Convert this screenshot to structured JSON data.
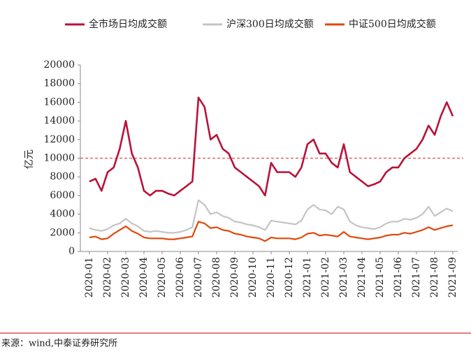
{
  "chart_data": {
    "type": "line",
    "y_label": "亿元",
    "source": "来源：wind,中泰证券研究所",
    "categories": [
      "2020-01",
      null,
      null,
      "2020-02",
      null,
      null,
      "2020-03",
      null,
      null,
      "2020-04",
      null,
      null,
      "2020-05",
      null,
      null,
      "2020-06",
      null,
      null,
      "2020-07",
      null,
      null,
      "2020-08",
      null,
      null,
      "2020-09",
      null,
      null,
      "2020-10",
      null,
      null,
      "2020-11",
      null,
      null,
      "2020-12",
      null,
      null,
      "2021-01",
      null,
      null,
      "2021-02",
      null,
      null,
      "2021-03",
      null,
      null,
      "2021-04",
      null,
      null,
      "2021-05",
      null,
      null,
      "2021-06",
      null,
      null,
      "2021-07",
      null,
      null,
      "2021-08",
      null,
      null,
      "2021-09"
    ],
    "series": [
      {
        "name": "全市场日均成交额",
        "color": "#b8123a",
        "values": [
          7500,
          7800,
          6500,
          8500,
          9000,
          11000,
          14000,
          10500,
          9000,
          6500,
          6000,
          6500,
          6500,
          6200,
          6000,
          6500,
          7000,
          7500,
          16500,
          15500,
          12000,
          12500,
          11000,
          10500,
          9000,
          8500,
          8000,
          7500,
          7000,
          6000,
          9500,
          8500,
          8500,
          8500,
          8000,
          9000,
          11500,
          12000,
          10500,
          10500,
          9500,
          9000,
          11500,
          8500,
          8000,
          7500,
          7000,
          7200,
          7500,
          8500,
          9000,
          9000,
          10000,
          10500,
          11000,
          12000,
          13500,
          12500,
          14500,
          16000,
          14500
        ]
      },
      {
        "name": "沪深300日均成交额",
        "color": "#c4c4c4",
        "values": [
          2500,
          2300,
          2200,
          2400,
          2800,
          3000,
          3500,
          3000,
          2700,
          2200,
          2100,
          2200,
          2100,
          2000,
          2000,
          2100,
          2300,
          2600,
          5500,
          5000,
          4000,
          4200,
          3800,
          3600,
          3200,
          3100,
          2900,
          2800,
          2600,
          2300,
          3300,
          3200,
          3100,
          3000,
          2900,
          3300,
          4500,
          5000,
          4500,
          4400,
          4000,
          4800,
          4500,
          3200,
          2800,
          2600,
          2500,
          2400,
          2600,
          3000,
          3200,
          3200,
          3500,
          3400,
          3600,
          4000,
          4800,
          3800,
          4200,
          4600,
          4300
        ]
      },
      {
        "name": "中证500日均成交额",
        "color": "#e0480c",
        "values": [
          1500,
          1600,
          1300,
          1400,
          1900,
          2300,
          2700,
          2200,
          1900,
          1500,
          1400,
          1400,
          1400,
          1300,
          1300,
          1400,
          1500,
          1600,
          3200,
          3000,
          2500,
          2600,
          2300,
          2200,
          1900,
          1800,
          1600,
          1500,
          1400,
          1100,
          1500,
          1400,
          1400,
          1400,
          1300,
          1500,
          1900,
          2000,
          1700,
          1800,
          1700,
          1600,
          2100,
          1600,
          1500,
          1400,
          1300,
          1400,
          1500,
          1700,
          1800,
          1800,
          2000,
          1900,
          2100,
          2300,
          2600,
          2300,
          2500,
          2700,
          2800
        ]
      }
    ],
    "hline": {
      "value": 10000,
      "color": "#e05050"
    },
    "ylim": [
      0,
      20000
    ],
    "yticks": [
      0,
      2000,
      4000,
      6000,
      8000,
      10000,
      12000,
      14000,
      16000,
      18000,
      20000
    ]
  }
}
